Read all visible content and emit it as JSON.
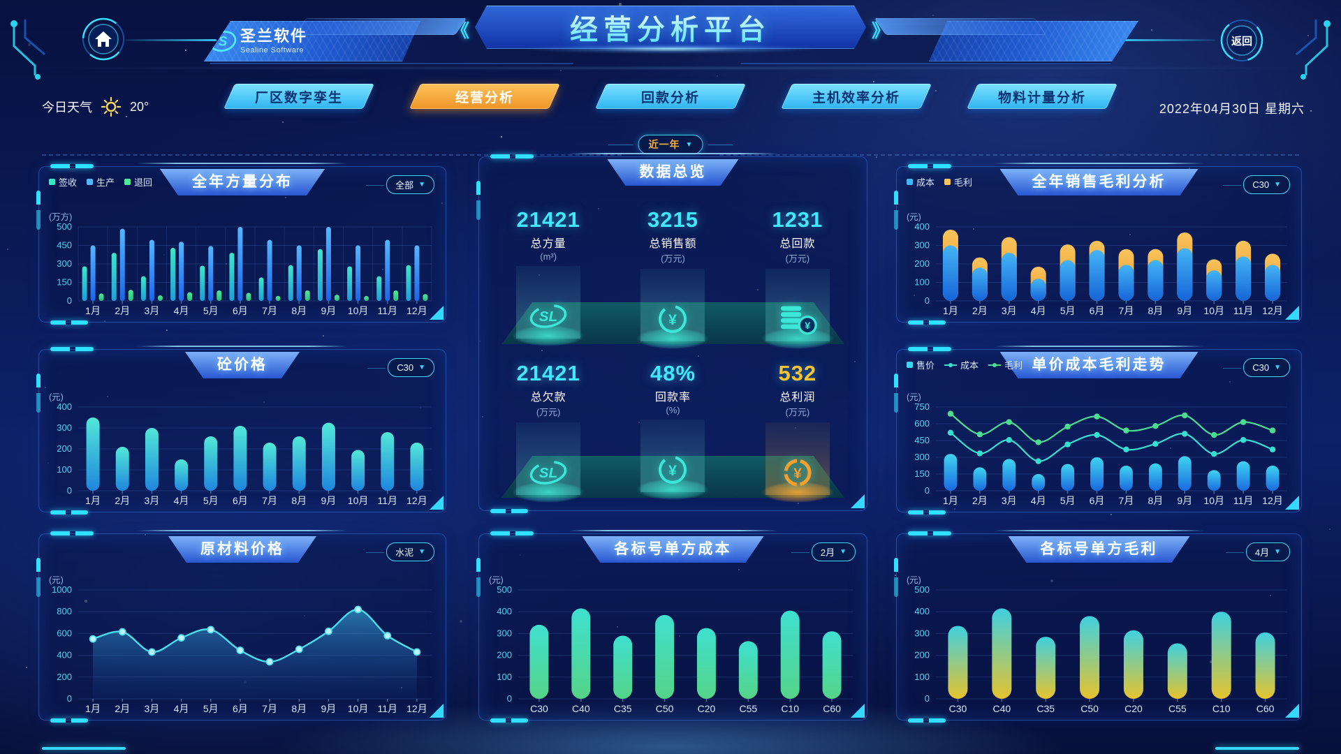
{
  "header": {
    "title": "经营分析平台",
    "logo": {
      "name": "圣兰软件",
      "sub": "Sealine Software"
    },
    "back_label": "返回",
    "weather": {
      "label": "今日天气",
      "temp": "20°"
    },
    "date": "2022年04月30日 星期六",
    "tabs": [
      {
        "label": "厂区数字孪生",
        "active": false
      },
      {
        "label": "经营分析",
        "active": true
      },
      {
        "label": "回款分析",
        "active": false
      },
      {
        "label": "主机效率分析",
        "active": false
      },
      {
        "label": "物料计量分析",
        "active": false
      }
    ],
    "range_selector": "近一年"
  },
  "marks": {
    "logo": "S",
    "sl": "SL",
    "yuan": "¥"
  },
  "colors": {
    "accent_cyan": "#35e0ff",
    "accent_orange": "#f5a02e",
    "number_cyan": "#3fe8ff",
    "number_yellow": "#f7c430",
    "tick": "#4fd2f2",
    "axis_label": "#d6e6ff"
  },
  "overview": {
    "title": "数据总览",
    "rows": [
      [
        {
          "value": "21421",
          "label": "总方量",
          "unit": "(m³)",
          "icon": "sl-logo-icon",
          "color": "cyan"
        },
        {
          "value": "3215",
          "label": "总销售额",
          "unit": "(万元)",
          "icon": "yuan-refresh-icon",
          "color": "cyan"
        },
        {
          "value": "1231",
          "label": "总回款",
          "unit": "(万元)",
          "icon": "coins-icon",
          "color": "cyan"
        }
      ],
      [
        {
          "value": "21421",
          "label": "总欠款",
          "unit": "(万元)",
          "icon": "sl-logo-icon",
          "color": "cyan"
        },
        {
          "value": "48%",
          "label": "回款率",
          "unit": "(%)",
          "icon": "yuan-refresh-icon",
          "color": "cyan"
        },
        {
          "value": "532",
          "label": "总利润",
          "unit": "(万元)",
          "icon": "yuan-coin-icon",
          "color": "yellow"
        }
      ]
    ]
  },
  "chart_data": [
    {
      "id": "annual-volume-distribution",
      "panel_title": "全年方量分布",
      "selector": "全部",
      "type": "bar",
      "unit": "(万方)",
      "ylim": [
        0,
        500
      ],
      "grid": "xy",
      "legend_position": "top-left",
      "y_ticks": [
        0,
        150,
        300,
        450,
        500
      ],
      "categories": [
        "1月",
        "2月",
        "3月",
        "4月",
        "5月",
        "6月",
        "7月",
        "8月",
        "9月",
        "10月",
        "11月",
        "12月"
      ],
      "series": [
        {
          "name": "签收",
          "kind": "bar",
          "colors": [
            "#3ee6c9",
            "#1f9fd8"
          ],
          "values": [
            280,
            390,
            200,
            430,
            285,
            390,
            190,
            290,
            420,
            280,
            200,
            290
          ]
        },
        {
          "name": "生产",
          "kind": "bar",
          "colors": [
            "#55b6ff",
            "#1d66e8"
          ],
          "values": [
            450,
            495,
            465,
            460,
            445,
            500,
            465,
            450,
            500,
            450,
            465,
            450
          ]
        },
        {
          "name": "退回",
          "kind": "bar",
          "colors": [
            "#52e89a",
            "#2bbf7a"
          ],
          "values": [
            60,
            90,
            45,
            70,
            85,
            65,
            40,
            85,
            50,
            40,
            85,
            55
          ]
        }
      ]
    },
    {
      "id": "annual-sales-gross-profit",
      "panel_title": "全年销售毛利分析",
      "selector": "C30",
      "type": "stacked-bar",
      "unit": "(元)",
      "ylim": [
        0,
        400
      ],
      "grid": "y",
      "legend_position": "top-left",
      "y_ticks": [
        0,
        100,
        200,
        300,
        400
      ],
      "categories": [
        "1月",
        "2月",
        "3月",
        "4月",
        "5月",
        "6月",
        "7月",
        "8月",
        "9月",
        "10月",
        "11月",
        "12月"
      ],
      "series": [
        {
          "name": "成本",
          "kind": "bar",
          "colors": [
            "#45b4f5",
            "#1565d8"
          ],
          "values": [
            300,
            180,
            260,
            120,
            220,
            275,
            195,
            220,
            285,
            165,
            240,
            195
          ]
        },
        {
          "name": "毛利",
          "kind": "bar",
          "colors": [
            "#f8c45c",
            "#ef9426"
          ],
          "values": [
            85,
            55,
            85,
            65,
            85,
            50,
            85,
            60,
            85,
            60,
            85,
            60
          ]
        }
      ]
    },
    {
      "id": "concrete-price",
      "panel_title": "砼价格",
      "selector": "C30",
      "type": "bar",
      "unit": "(元)",
      "ylim": [
        0,
        400
      ],
      "grid": "y",
      "y_ticks": [
        0,
        100,
        200,
        300,
        400
      ],
      "categories": [
        "1月",
        "2月",
        "3月",
        "4月",
        "5月",
        "6月",
        "7月",
        "8月",
        "9月",
        "10月",
        "11月",
        "12月"
      ],
      "series": [
        {
          "name": "价格",
          "kind": "bar",
          "colors": [
            "#52e8d8",
            "#1f86dd"
          ],
          "values": [
            350,
            210,
            300,
            150,
            260,
            310,
            230,
            260,
            325,
            195,
            280,
            230
          ]
        }
      ]
    },
    {
      "id": "unit-price-cost-profit-trend",
      "panel_title": "单价成本毛利走势",
      "selector": "C30",
      "type": "mixed",
      "unit": "(元)",
      "ylim": [
        0,
        750
      ],
      "grid": "y",
      "legend_position": "top-left",
      "y_ticks": [
        0,
        150,
        300,
        450,
        600,
        750
      ],
      "categories": [
        "1月",
        "2月",
        "3月",
        "4月",
        "5月",
        "6月",
        "7月",
        "8月",
        "9月",
        "10月",
        "11月",
        "12月"
      ],
      "series": [
        {
          "name": "售价",
          "kind": "bar",
          "colors": [
            "#3fd4f0",
            "#1a6ae0"
          ],
          "values": [
            330,
            210,
            285,
            150,
            240,
            300,
            225,
            245,
            310,
            185,
            265,
            225
          ]
        },
        {
          "name": "成本",
          "kind": "line",
          "colors": [
            "#35e0d0"
          ],
          "values": [
            520,
            335,
            455,
            265,
            415,
            500,
            370,
            420,
            510,
            330,
            455,
            370
          ]
        },
        {
          "name": "毛利",
          "kind": "line",
          "colors": [
            "#4ade8e"
          ],
          "values": [
            690,
            505,
            615,
            435,
            575,
            665,
            540,
            580,
            675,
            500,
            615,
            540
          ]
        }
      ]
    },
    {
      "id": "raw-material-price",
      "panel_title": "原材料价格",
      "selector": "水泥",
      "type": "area",
      "unit": "(元)",
      "ylim": [
        0,
        1000
      ],
      "grid": "y",
      "y_ticks": [
        0,
        200,
        400,
        600,
        800,
        1000
      ],
      "categories": [
        "1月",
        "2月",
        "3月",
        "4月",
        "5月",
        "6月",
        "7月",
        "8月",
        "9月",
        "10月",
        "11月",
        "12月"
      ],
      "series": [
        {
          "name": "价格",
          "kind": "area",
          "colors": [
            "#46e0f0"
          ],
          "values": [
            550,
            615,
            430,
            560,
            635,
            445,
            340,
            455,
            620,
            820,
            580,
            430
          ]
        }
      ]
    },
    {
      "id": "unit-cost-by-grade",
      "panel_title": "各标号单方成本",
      "selector": "2月",
      "type": "bar",
      "unit": "(元)",
      "ylim": [
        0,
        500
      ],
      "grid": "y",
      "y_ticks": [
        0,
        100,
        200,
        300,
        400,
        500
      ],
      "categories": [
        "C30",
        "C40",
        "C35",
        "C50",
        "C20",
        "C55",
        "C10",
        "C60"
      ],
      "series": [
        {
          "name": "成本",
          "kind": "bar",
          "colors": [
            "#3fe0d0",
            "#55d488"
          ],
          "values": [
            340,
            415,
            290,
            385,
            325,
            265,
            405,
            310
          ]
        }
      ]
    },
    {
      "id": "unit-gross-profit-by-grade",
      "panel_title": "各标号单方毛利",
      "selector": "4月",
      "type": "bar",
      "unit": "(元)",
      "ylim": [
        0,
        500
      ],
      "grid": "y",
      "y_ticks": [
        0,
        100,
        200,
        300,
        400,
        500
      ],
      "categories": [
        "C30",
        "C40",
        "C35",
        "C50",
        "C20",
        "C55",
        "C10",
        "C60"
      ],
      "series": [
        {
          "name": "毛利",
          "kind": "bar",
          "colors": [
            "#3fd0e0",
            "#e6c32e"
          ],
          "values": [
            335,
            415,
            285,
            380,
            315,
            255,
            400,
            305
          ]
        }
      ]
    }
  ]
}
